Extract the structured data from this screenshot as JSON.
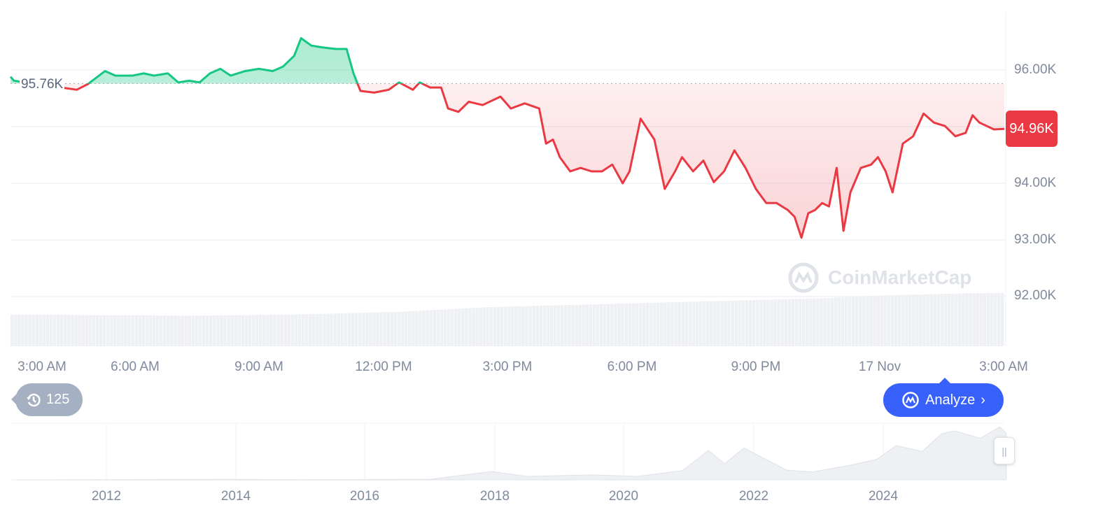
{
  "chart_data": {
    "type": "line",
    "baseline": {
      "value": 95.76,
      "label": "95.76K"
    },
    "current_price": {
      "value": 94.96,
      "label": "94.96K"
    },
    "ylim": [
      91.5,
      97
    ],
    "yticks": [
      "96.00K",
      "94.00K",
      "93.00K",
      "92.00K"
    ],
    "xticks": [
      "3:00 AM",
      "6:00 AM",
      "9:00 AM",
      "12:00 PM",
      "3:00 PM",
      "6:00 PM",
      "9:00 PM",
      "17 Nov",
      "3:00 AM"
    ],
    "xlim": [
      "16 Nov 03:00",
      "17 Nov 03:00"
    ],
    "grid": true,
    "colors": {
      "up": "#16c784",
      "down": "#ea3943",
      "volume": "#eef0f3"
    },
    "points": [
      [
        "16 Nov 03:00",
        95.88
      ],
      [
        "16 Nov 03:05",
        95.81
      ],
      [
        "16 Nov 04:36",
        95.65
      ],
      [
        "16 Nov 04:52",
        95.75
      ],
      [
        "16 Nov 05:17",
        95.98
      ],
      [
        "16 Nov 05:32",
        95.9
      ],
      [
        "16 Nov 05:57",
        95.9
      ],
      [
        "16 Nov 06:13",
        95.94
      ],
      [
        "16 Nov 06:28",
        95.9
      ],
      [
        "16 Nov 06:48",
        95.94
      ],
      [
        "16 Nov 07:03",
        95.78
      ],
      [
        "16 Nov 07:19",
        95.81
      ],
      [
        "16 Nov 07:34",
        95.78
      ],
      [
        "16 Nov 07:49",
        95.94
      ],
      [
        "16 Nov 08:04",
        96.02
      ],
      [
        "16 Nov 08:19",
        95.9
      ],
      [
        "16 Nov 08:40",
        95.98
      ],
      [
        "16 Nov 09:00",
        96.02
      ],
      [
        "16 Nov 09:20",
        95.98
      ],
      [
        "16 Nov 09:35",
        96.06
      ],
      [
        "16 Nov 09:51",
        96.25
      ],
      [
        "16 Nov 10:01",
        96.56
      ],
      [
        "16 Nov 10:16",
        96.43
      ],
      [
        "16 Nov 10:31",
        96.4
      ],
      [
        "16 Nov 10:51",
        96.37
      ],
      [
        "16 Nov 11:07",
        96.37
      ],
      [
        "16 Nov 11:17",
        95.94
      ],
      [
        "16 Nov 11:27",
        95.63
      ],
      [
        "16 Nov 11:47",
        95.6
      ],
      [
        "16 Nov 12:08",
        95.65
      ],
      [
        "16 Nov 12:23",
        95.78
      ],
      [
        "16 Nov 12:43",
        95.65
      ],
      [
        "16 Nov 12:53",
        95.78
      ],
      [
        "16 Nov 13:08",
        95.69
      ],
      [
        "16 Nov 13:24",
        95.69
      ],
      [
        "16 Nov 13:34",
        95.32
      ],
      [
        "16 Nov 13:49",
        95.26
      ],
      [
        "16 Nov 14:04",
        95.44
      ],
      [
        "16 Nov 14:24",
        95.38
      ],
      [
        "16 Nov 14:50",
        95.53
      ],
      [
        "16 Nov 15:05",
        95.32
      ],
      [
        "16 Nov 15:25",
        95.41
      ],
      [
        "16 Nov 15:46",
        95.32
      ],
      [
        "16 Nov 15:56",
        94.7
      ],
      [
        "16 Nov 16:06",
        94.77
      ],
      [
        "16 Nov 16:16",
        94.46
      ],
      [
        "16 Nov 16:31",
        94.21
      ],
      [
        "16 Nov 16:46",
        94.27
      ],
      [
        "16 Nov 17:02",
        94.21
      ],
      [
        "16 Nov 17:17",
        94.21
      ],
      [
        "16 Nov 17:32",
        94.33
      ],
      [
        "16 Nov 17:47",
        94.0
      ],
      [
        "16 Nov 17:57",
        94.21
      ],
      [
        "16 Nov 18:13",
        95.14
      ],
      [
        "16 Nov 18:33",
        94.77
      ],
      [
        "16 Nov 18:48",
        93.9
      ],
      [
        "16 Nov 19:03",
        94.21
      ],
      [
        "16 Nov 19:13",
        94.46
      ],
      [
        "16 Nov 19:29",
        94.21
      ],
      [
        "16 Nov 19:44",
        94.4
      ],
      [
        "16 Nov 19:59",
        94.02
      ],
      [
        "16 Nov 20:14",
        94.21
      ],
      [
        "16 Nov 20:29",
        94.58
      ],
      [
        "16 Nov 20:45",
        94.27
      ],
      [
        "16 Nov 21:00",
        93.9
      ],
      [
        "16 Nov 21:15",
        93.65
      ],
      [
        "16 Nov 21:30",
        93.65
      ],
      [
        "16 Nov 21:46",
        93.53
      ],
      [
        "16 Nov 21:56",
        93.41
      ],
      [
        "16 Nov 22:06",
        93.04
      ],
      [
        "16 Nov 22:16",
        93.47
      ],
      [
        "16 Nov 22:26",
        93.53
      ],
      [
        "16 Nov 22:36",
        93.65
      ],
      [
        "16 Nov 22:46",
        93.59
      ],
      [
        "16 Nov 22:57",
        94.27
      ],
      [
        "16 Nov 23:07",
        93.16
      ],
      [
        "16 Nov 23:17",
        93.84
      ],
      [
        "16 Nov 23:32",
        94.27
      ],
      [
        "16 Nov 23:47",
        94.33
      ],
      [
        "16 Nov 23:57",
        94.46
      ],
      [
        "17 Nov 00:08",
        94.21
      ],
      [
        "17 Nov 00:18",
        93.84
      ],
      [
        "17 Nov 00:33",
        94.7
      ],
      [
        "17 Nov 00:48",
        94.83
      ],
      [
        "17 Nov 01:03",
        95.23
      ],
      [
        "17 Nov 01:18",
        95.07
      ],
      [
        "17 Nov 01:34",
        95.01
      ],
      [
        "17 Nov 01:49",
        94.83
      ],
      [
        "17 Nov 02:04",
        94.89
      ],
      [
        "17 Nov 02:14",
        95.2
      ],
      [
        "17 Nov 02:24",
        95.07
      ],
      [
        "17 Nov 02:45",
        94.95
      ],
      [
        "17 Nov 03:00",
        94.96
      ]
    ],
    "volume_relative": [
      0.55,
      0.55,
      0.54,
      0.54,
      0.53,
      0.54,
      0.55,
      0.56,
      0.58,
      0.6,
      0.64,
      0.68,
      0.7,
      0.72,
      0.74,
      0.76,
      0.78,
      0.8,
      0.82,
      0.84,
      0.88,
      0.9,
      0.92,
      0.93
    ],
    "navigator": {
      "type": "area",
      "xticks": [
        "2012",
        "2014",
        "2016",
        "2018",
        "2020",
        "2022",
        "2024"
      ],
      "points": [
        [
          2010.6,
          0
        ],
        [
          2013.9,
          0.8
        ],
        [
          2015,
          0.3
        ],
        [
          2017,
          1
        ],
        [
          2017.95,
          17
        ],
        [
          2018.5,
          7
        ],
        [
          2019.5,
          10
        ],
        [
          2020.2,
          7
        ],
        [
          2020.9,
          19
        ],
        [
          2021.3,
          60
        ],
        [
          2021.55,
          33
        ],
        [
          2021.85,
          65
        ],
        [
          2022.5,
          20
        ],
        [
          2022.9,
          16
        ],
        [
          2023.5,
          30
        ],
        [
          2023.9,
          42
        ],
        [
          2024.2,
          70
        ],
        [
          2024.6,
          58
        ],
        [
          2024.9,
          94
        ],
        [
          2025.1,
          100
        ],
        [
          2025.5,
          85
        ],
        [
          2025.8,
          108
        ],
        [
          2025.9,
          95
        ]
      ]
    }
  },
  "history_badge": {
    "count": "125",
    "icon": "history-icon"
  },
  "analyze_button": {
    "label": "Analyze",
    "icon": "coinmarketcap-logo"
  },
  "watermark": "CoinMarketCap"
}
